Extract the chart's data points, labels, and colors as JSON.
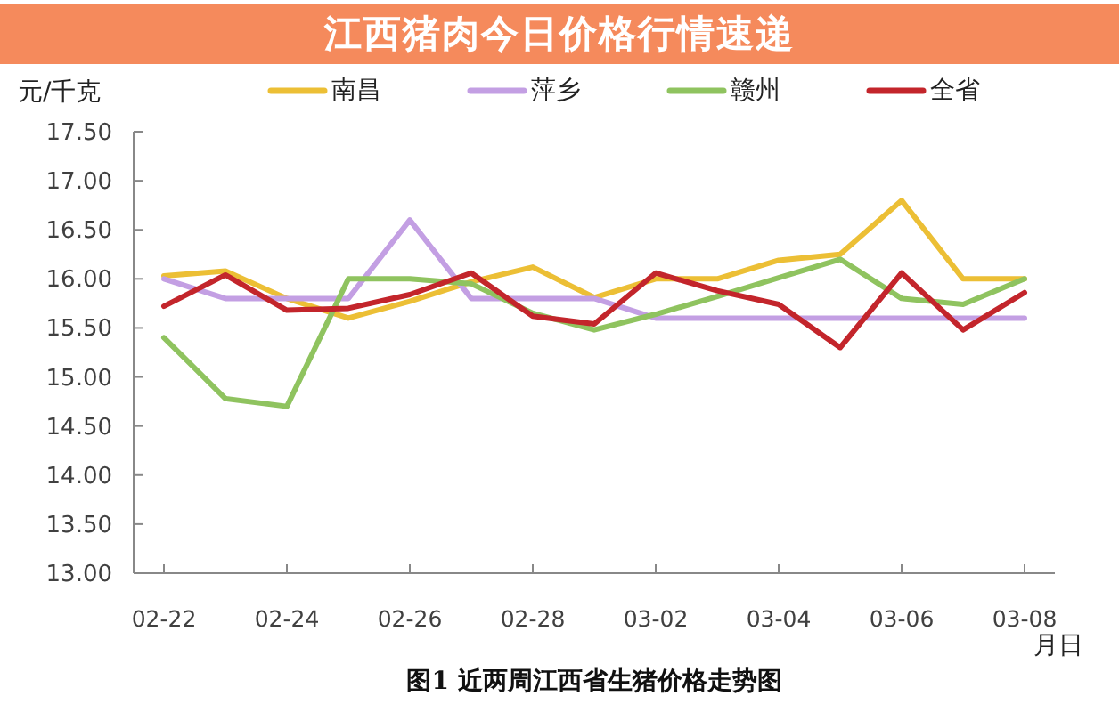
{
  "chart_data": {
    "type": "line",
    "title": "江西猪肉今日价格行情速递",
    "ylabel": "元/千克",
    "xlabel": "月日",
    "annotations": [
      "图1 近两周江西省生猪价格走势图"
    ],
    "categories": [
      "02-22",
      null,
      "02-24",
      null,
      "02-26",
      null,
      "02-28",
      null,
      "03-02",
      null,
      "03-04",
      null,
      "03-06",
      null,
      "03-08"
    ],
    "series": [
      {
        "name": "南昌",
        "color": "#ecbf35",
        "values": [
          16.03,
          16.08,
          15.8,
          15.6,
          15.77,
          15.97,
          16.12,
          15.81,
          16.0,
          16.0,
          16.19,
          16.25,
          16.8,
          16.0,
          16.0
        ]
      },
      {
        "name": "萍乡",
        "color": "#c39fe3",
        "values": [
          16.0,
          15.8,
          15.8,
          15.8,
          16.6,
          15.8,
          15.8,
          15.8,
          15.6,
          15.6,
          15.6,
          15.6,
          15.6,
          15.6,
          15.6
        ]
      },
      {
        "name": "赣州",
        "color": "#8fc35f",
        "values": [
          15.4,
          14.78,
          14.7,
          16.0,
          16.0,
          15.95,
          15.65,
          15.48,
          15.64,
          15.82,
          16.01,
          16.2,
          15.8,
          15.74,
          16.0
        ]
      },
      {
        "name": "全省",
        "color": "#c3252b",
        "values": [
          15.72,
          16.04,
          15.68,
          15.7,
          15.84,
          16.06,
          15.62,
          15.54,
          16.06,
          15.88,
          15.74,
          15.3,
          16.06,
          15.48,
          15.86
        ]
      }
    ],
    "ylim": [
      13,
      17.5
    ],
    "yticks": [
      {
        "value": 13,
        "label": "13.00"
      },
      {
        "value": 13.5,
        "label": "13.50"
      },
      {
        "value": 14,
        "label": "14.00"
      },
      {
        "value": 14.5,
        "label": "14.50"
      },
      {
        "value": 15,
        "label": "15.00"
      },
      {
        "value": 15.5,
        "label": "15.50"
      },
      {
        "value": 16,
        "label": "16.00"
      },
      {
        "value": 16.5,
        "label": "16.50"
      },
      {
        "value": 17,
        "label": "17.00"
      },
      {
        "value": 17.5,
        "label": "17.50"
      }
    ],
    "legend": "top",
    "marker": "none"
  }
}
